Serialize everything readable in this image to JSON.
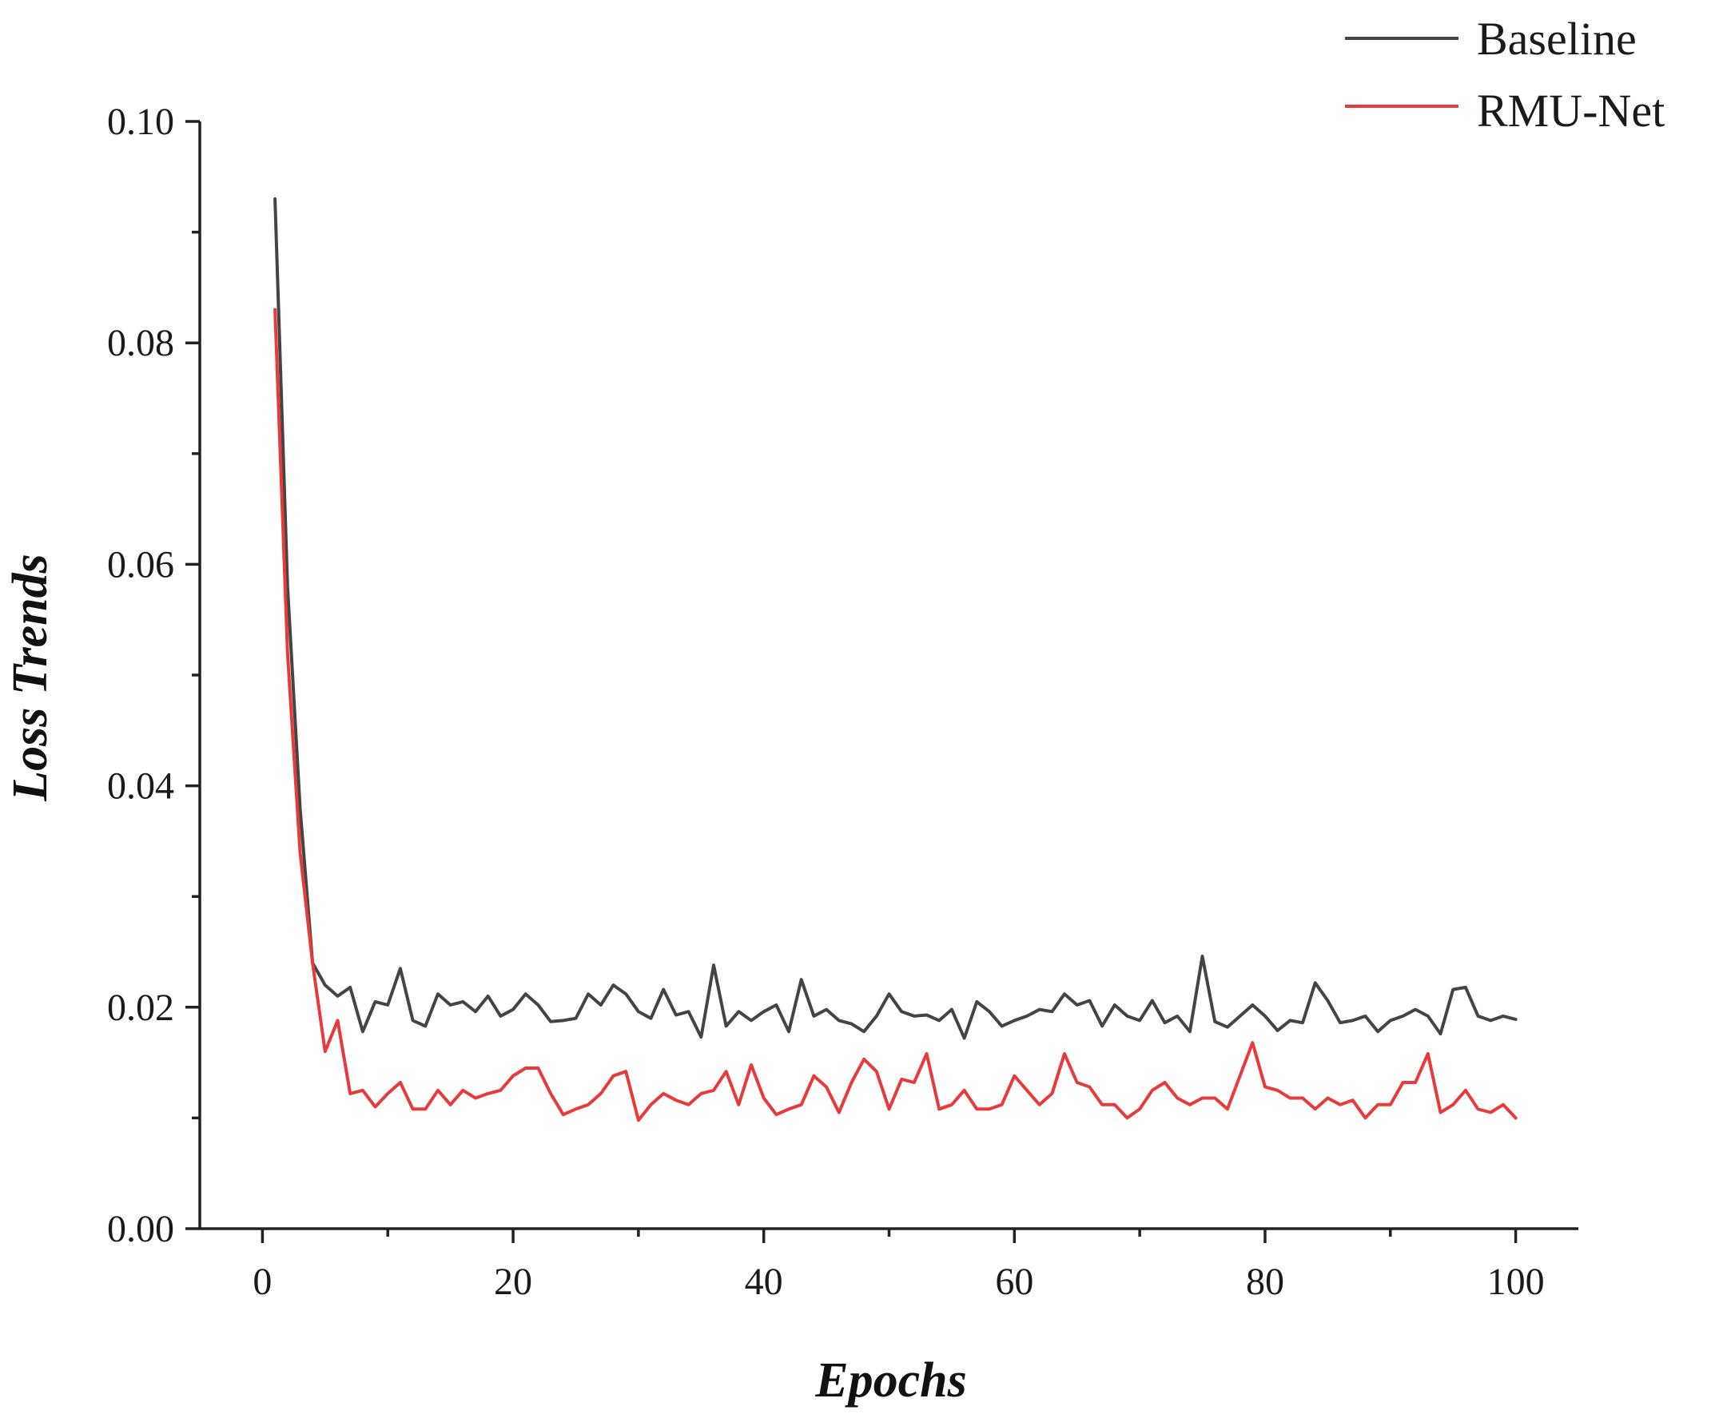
{
  "chart_data": {
    "type": "line",
    "title": "",
    "xlabel": "Epochs",
    "ylabel": "Loss Trends",
    "xlim": [
      -5,
      105
    ],
    "ylim": [
      0.0,
      0.1
    ],
    "xticks": [
      0,
      20,
      40,
      60,
      80,
      100
    ],
    "xtick_labels": [
      "0",
      "20",
      "40",
      "60",
      "80",
      "100"
    ],
    "yticks": [
      0.0,
      0.02,
      0.04,
      0.06,
      0.08,
      0.1
    ],
    "ytick_labels": [
      "0.00",
      "0.02",
      "0.04",
      "0.06",
      "0.08",
      "0.10"
    ],
    "grid": false,
    "legend_position": "top-right",
    "x": [
      1,
      2,
      3,
      4,
      5,
      6,
      7,
      8,
      9,
      10,
      11,
      12,
      13,
      14,
      15,
      16,
      17,
      18,
      19,
      20,
      21,
      22,
      23,
      24,
      25,
      26,
      27,
      28,
      29,
      30,
      31,
      32,
      33,
      34,
      35,
      36,
      37,
      38,
      39,
      40,
      41,
      42,
      43,
      44,
      45,
      46,
      47,
      48,
      49,
      50,
      51,
      52,
      53,
      54,
      55,
      56,
      57,
      58,
      59,
      60,
      61,
      62,
      63,
      64,
      65,
      66,
      67,
      68,
      69,
      70,
      71,
      72,
      73,
      74,
      75,
      76,
      77,
      78,
      79,
      80,
      81,
      82,
      83,
      84,
      85,
      86,
      87,
      88,
      89,
      90,
      91,
      92,
      93,
      94,
      95,
      96,
      97,
      98,
      99,
      100
    ],
    "series": [
      {
        "name": "Baseline",
        "color": "#444444",
        "values": [
          0.093,
          0.058,
          0.038,
          0.024,
          0.022,
          0.021,
          0.0218,
          0.0178,
          0.0205,
          0.0202,
          0.0235,
          0.0188,
          0.0183,
          0.0212,
          0.0202,
          0.0205,
          0.0196,
          0.021,
          0.0192,
          0.0198,
          0.0212,
          0.0202,
          0.0187,
          0.0188,
          0.019,
          0.0212,
          0.0202,
          0.022,
          0.0212,
          0.0196,
          0.019,
          0.0216,
          0.0193,
          0.0196,
          0.0173,
          0.0238,
          0.0183,
          0.0196,
          0.0188,
          0.0196,
          0.0202,
          0.0178,
          0.0225,
          0.0192,
          0.0198,
          0.0188,
          0.0185,
          0.0178,
          0.0192,
          0.0212,
          0.0196,
          0.0192,
          0.0193,
          0.0188,
          0.0198,
          0.0172,
          0.0205,
          0.0196,
          0.0183,
          0.0188,
          0.0192,
          0.0198,
          0.0196,
          0.0212,
          0.0202,
          0.0206,
          0.0183,
          0.0202,
          0.0192,
          0.0188,
          0.0206,
          0.0186,
          0.0192,
          0.0178,
          0.0246,
          0.0187,
          0.0182,
          0.0192,
          0.0202,
          0.0192,
          0.0179,
          0.0188,
          0.0186,
          0.0222,
          0.0206,
          0.0186,
          0.0188,
          0.0192,
          0.0178,
          0.0188,
          0.0192,
          0.0198,
          0.0192,
          0.0176,
          0.0216,
          0.0218,
          0.0192,
          0.0188,
          0.0192,
          0.0189
        ]
      },
      {
        "name": "RMU-Net",
        "color": "#e83a3a",
        "values": [
          0.083,
          0.052,
          0.034,
          0.024,
          0.016,
          0.0188,
          0.0122,
          0.0125,
          0.011,
          0.0122,
          0.0132,
          0.0108,
          0.0108,
          0.0125,
          0.0112,
          0.0125,
          0.0118,
          0.0122,
          0.0125,
          0.0138,
          0.0145,
          0.0145,
          0.0122,
          0.0103,
          0.0108,
          0.0112,
          0.0122,
          0.0138,
          0.0142,
          0.0098,
          0.0112,
          0.0122,
          0.0116,
          0.0112,
          0.0122,
          0.0125,
          0.0142,
          0.0112,
          0.0148,
          0.0118,
          0.0103,
          0.0108,
          0.0112,
          0.0138,
          0.0128,
          0.0105,
          0.0132,
          0.0153,
          0.0142,
          0.0108,
          0.0135,
          0.0132,
          0.0158,
          0.0108,
          0.0112,
          0.0125,
          0.0108,
          0.0108,
          0.0112,
          0.0138,
          0.0125,
          0.0112,
          0.0122,
          0.0158,
          0.0132,
          0.0128,
          0.0112,
          0.0112,
          0.01,
          0.0108,
          0.0125,
          0.0132,
          0.0118,
          0.0112,
          0.0118,
          0.0118,
          0.0108,
          0.0138,
          0.0168,
          0.0128,
          0.0125,
          0.0118,
          0.0118,
          0.0108,
          0.0118,
          0.0112,
          0.0116,
          0.01,
          0.0112,
          0.0112,
          0.0132,
          0.0132,
          0.0158,
          0.0105,
          0.0112,
          0.0125,
          0.0108,
          0.0105,
          0.0112,
          0.01
        ]
      }
    ]
  }
}
